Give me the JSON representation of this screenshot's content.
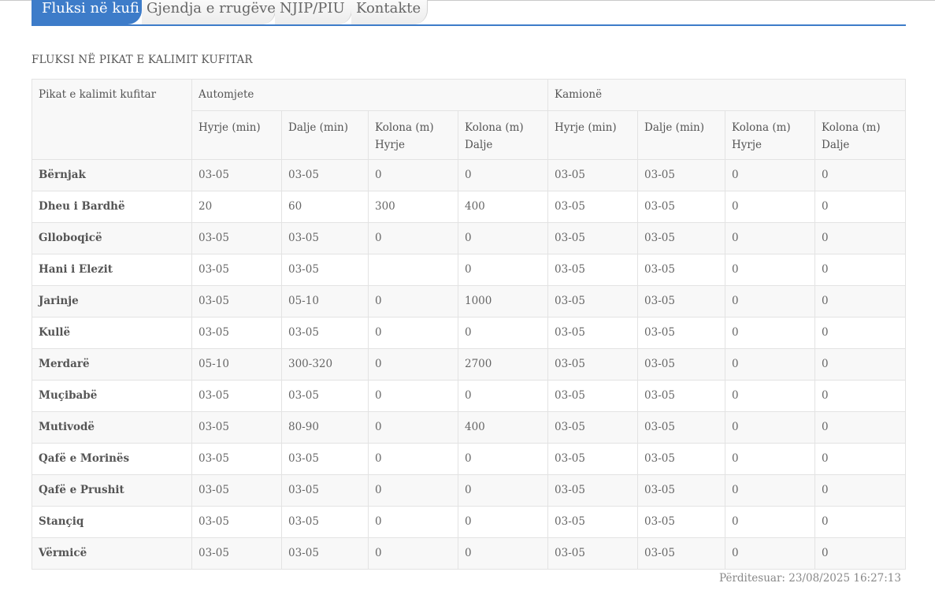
{
  "tabs": [
    {
      "label": "Fluksi në kufi",
      "active": true
    },
    {
      "label": "Gjendja e rrugëve",
      "active": false
    },
    {
      "label": "NJIP/PIU",
      "active": false
    },
    {
      "label": "Kontakte",
      "active": false
    }
  ],
  "section_title": "FLUKSI NË PIKAT E KALIMIT KUFITAR",
  "table": {
    "header": {
      "point": "Pikat e kalimit kufitar",
      "group_cars": "Automjete",
      "group_trucks": "Kamionë",
      "cols": [
        "Hyrje (min)",
        "Dalje (min)",
        "Kolona (m) Hyrje",
        "Kolona (m) Dalje",
        "Hyrje (min)",
        "Dalje (min)",
        "Kolona (m) Hyrje",
        "Kolona (m) Dalje"
      ]
    },
    "rows": [
      {
        "name": "Bërnjak",
        "values": [
          "03-05",
          "03-05",
          "0",
          "0",
          "03-05",
          "03-05",
          "0",
          "0"
        ]
      },
      {
        "name": "Dheu i Bardhë",
        "values": [
          "20",
          "60",
          "300",
          "400",
          "03-05",
          "03-05",
          "0",
          "0"
        ]
      },
      {
        "name": "Glloboqicë",
        "values": [
          "03-05",
          "03-05",
          "0",
          "0",
          "03-05",
          "03-05",
          "0",
          "0"
        ]
      },
      {
        "name": "Hani i Elezit",
        "values": [
          "03-05",
          "03-05",
          "",
          "0",
          "03-05",
          "03-05",
          "0",
          "0"
        ]
      },
      {
        "name": "Jarinje",
        "values": [
          "03-05",
          "05-10",
          "0",
          "1000",
          "03-05",
          "03-05",
          "0",
          "0"
        ]
      },
      {
        "name": "Kullë",
        "values": [
          "03-05",
          "03-05",
          "0",
          "0",
          "03-05",
          "03-05",
          "0",
          "0"
        ]
      },
      {
        "name": "Merdarë",
        "values": [
          "05-10",
          "300-320",
          "0",
          "2700",
          "03-05",
          "03-05",
          "0",
          "0"
        ]
      },
      {
        "name": "Muçibabë",
        "values": [
          "03-05",
          "03-05",
          "0",
          "0",
          "03-05",
          "03-05",
          "0",
          "0"
        ]
      },
      {
        "name": "Mutivodë",
        "values": [
          "03-05",
          "80-90",
          "0",
          "400",
          "03-05",
          "03-05",
          "0",
          "0"
        ]
      },
      {
        "name": "Qafë e Morinës",
        "values": [
          "03-05",
          "03-05",
          "0",
          "0",
          "03-05",
          "03-05",
          "0",
          "0"
        ]
      },
      {
        "name": "Qafë e Prushit",
        "values": [
          "03-05",
          "03-05",
          "0",
          "0",
          "03-05",
          "03-05",
          "0",
          "0"
        ]
      },
      {
        "name": "Stançiq",
        "values": [
          "03-05",
          "03-05",
          "0",
          "0",
          "03-05",
          "03-05",
          "0",
          "0"
        ]
      },
      {
        "name": "Vërmicë",
        "values": [
          "03-05",
          "03-05",
          "0",
          "0",
          "03-05",
          "03-05",
          "0",
          "0"
        ]
      }
    ]
  },
  "updated": "Përditesuar: 23/08/2025 16:27:13",
  "colors": {
    "accent": "#3d7cc9"
  }
}
